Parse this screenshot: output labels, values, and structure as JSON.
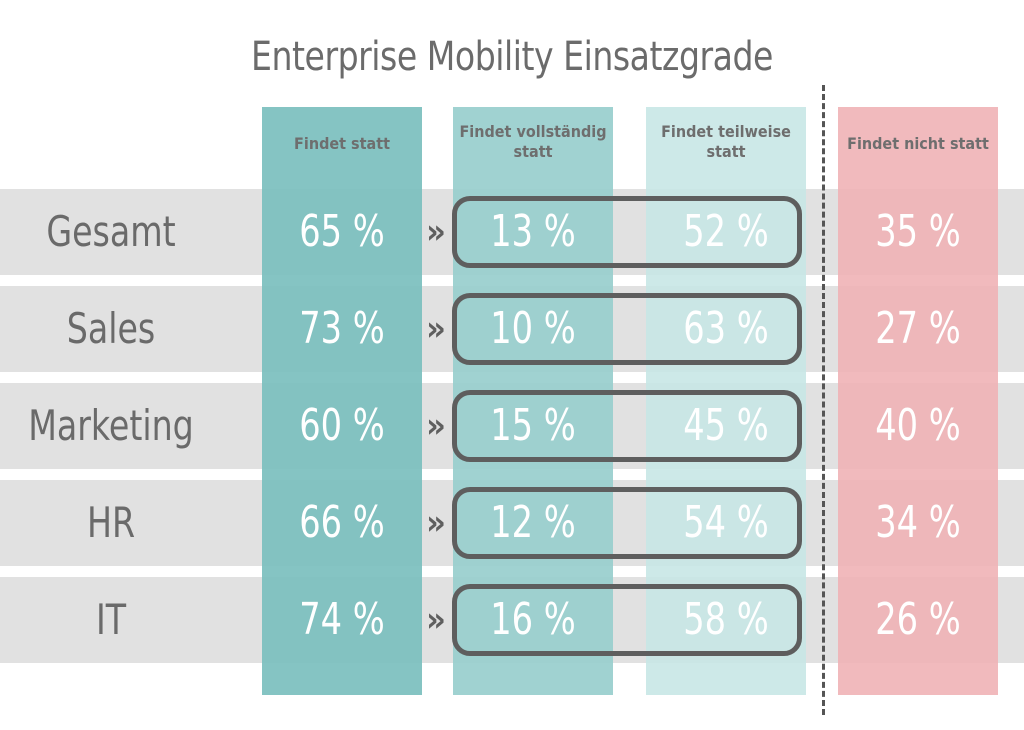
{
  "chart_data": {
    "type": "table",
    "title": "Enterprise Mobility Einsatzgrade",
    "columns": [
      "Findet statt",
      "Findet vollständig statt",
      "Findet teilweise statt",
      "Findet nicht statt"
    ],
    "rows": [
      "Gesamt",
      "Sales",
      "Marketing",
      "HR",
      "IT"
    ],
    "values": [
      [
        65,
        13,
        52,
        35
      ],
      [
        73,
        10,
        63,
        27
      ],
      [
        60,
        15,
        45,
        40
      ],
      [
        66,
        12,
        54,
        34
      ],
      [
        74,
        16,
        58,
        26
      ]
    ],
    "unit": "%",
    "separator_symbol": "»",
    "colors": {
      "findet_statt": "#7cbfbe",
      "vollstaendig": "#99cfcd",
      "teilweise": "#c8e7e5",
      "nicht": "#f0b3b6",
      "row_band": "#e1e1e1",
      "text": "#6b6b6b"
    }
  }
}
